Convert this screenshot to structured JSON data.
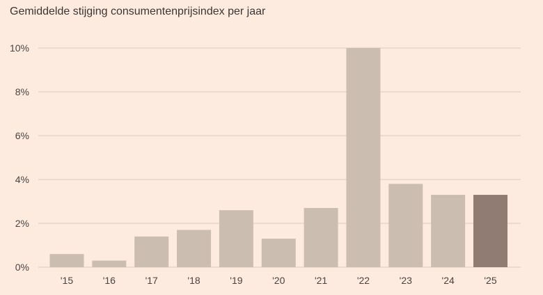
{
  "chart_data": {
    "type": "bar",
    "title": "Gemiddelde stijging consumentenprijsindex per jaar",
    "categories": [
      "'15",
      "'16",
      "'17",
      "'18",
      "'19",
      "'20",
      "'21",
      "'22",
      "'23",
      "'24",
      "'25"
    ],
    "values": [
      0.6,
      0.3,
      1.4,
      1.7,
      2.6,
      1.3,
      2.7,
      10.0,
      3.8,
      3.3,
      3.3
    ],
    "unit": "%",
    "ylim": [
      0,
      10
    ],
    "yticks": [
      0,
      2,
      4,
      6,
      8,
      10
    ],
    "ytick_labels": [
      "0%",
      "2%",
      "4%",
      "6%",
      "8%",
      "10%"
    ],
    "grid": true,
    "colors": {
      "bar": "#ccbdb1",
      "highlight": "#917c74",
      "grid": "#dcc8bb",
      "background": "#fdebdf"
    },
    "highlight_category": "'25"
  }
}
